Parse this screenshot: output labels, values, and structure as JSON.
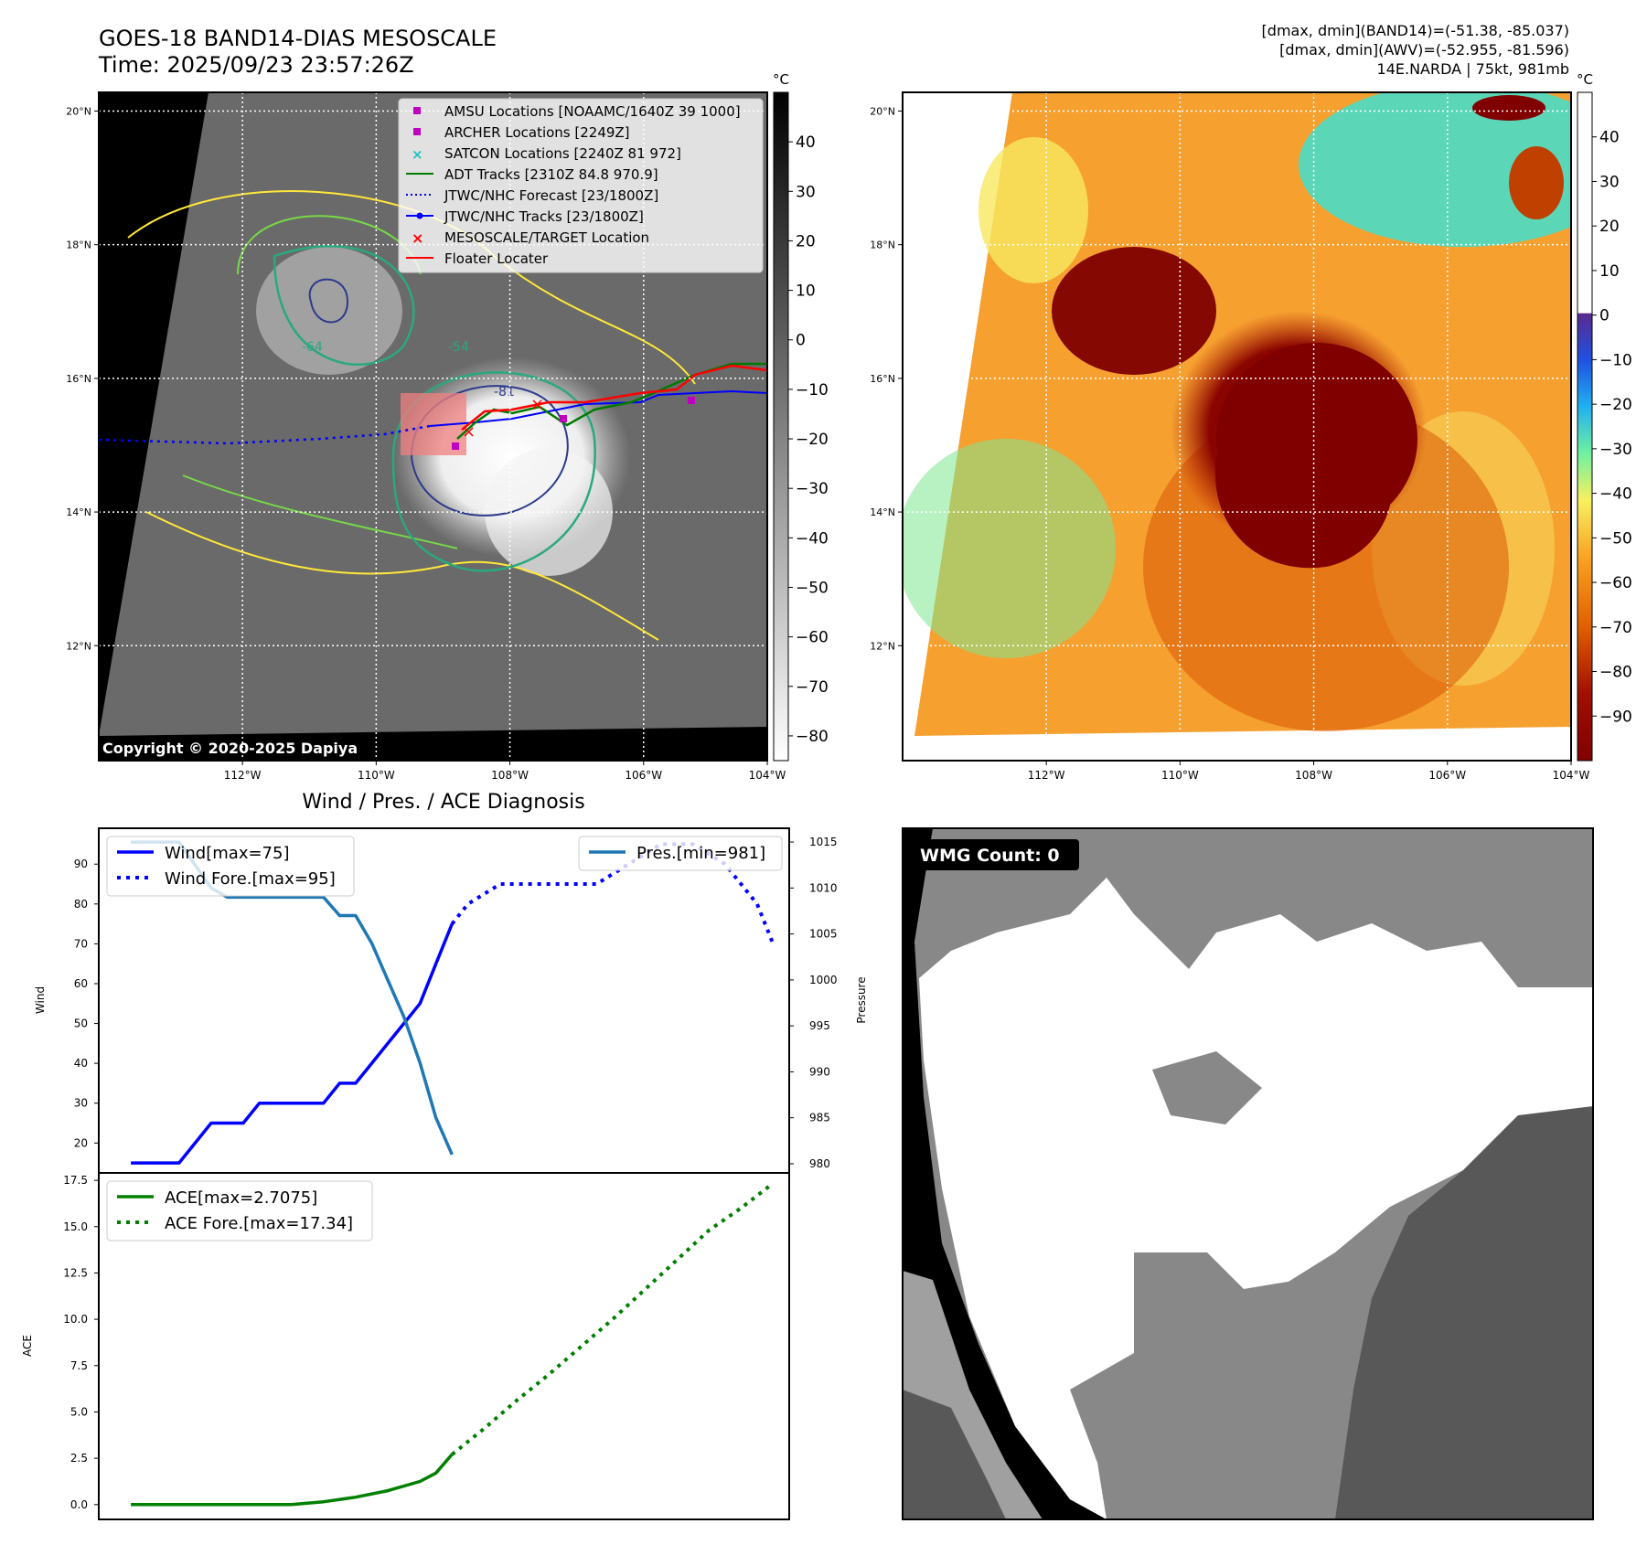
{
  "header": {
    "title_line1": "GOES-18 BAND14-DIAS MESOSCALE",
    "title_line2": "Time: 2025/09/23 23:57:26Z",
    "stats_line1": "[dmax, dmin](BAND14)=(-51.38, -85.037)",
    "stats_line2": "[dmax, dmin](AWV)=(-52.955, -81.596)",
    "stats_line3": "14E.NARDA | 75kt, 981mb"
  },
  "copyright": "Copyright © 2020-2025 Dapiya",
  "wmg_label": "WMG Count: 0",
  "chart_data": [
    {
      "type": "heatmap",
      "name": "ir-map-gray",
      "xticks": [
        "112°W",
        "110°W",
        "108°W",
        "106°W",
        "104°W"
      ],
      "yticks": [
        "20°N",
        "18°N",
        "16°N",
        "14°N",
        "12°N"
      ],
      "colorbar": {
        "unit": "°C",
        "ticks": [
          40,
          30,
          20,
          10,
          0,
          -10,
          -20,
          -30,
          -40,
          -50,
          -60,
          -70,
          -80
        ],
        "range": [
          -85,
          50
        ],
        "palette": "gray"
      },
      "contour_labels": [
        "-64",
        "-54",
        "-81"
      ],
      "legend": [
        {
          "label": "AMSU Locations [NOAAMC/1640Z 39 1000]",
          "marker": "square",
          "color": "#c000c0"
        },
        {
          "label": "ARCHER Locations [2249Z]",
          "marker": "square",
          "color": "#c000c0"
        },
        {
          "label": "SATCON Locations [2240Z 81 972]",
          "marker": "x",
          "color": "#20c0c0"
        },
        {
          "label": "ADT Tracks [2310Z 84.8 970.9]",
          "marker": "line",
          "color": "#007a00"
        },
        {
          "label": "JTWC/NHC Forecast [23/1800Z]",
          "marker": "dotted",
          "color": "#0000ff"
        },
        {
          "label": "JTWC/NHC Tracks [23/1800Z]",
          "marker": "line-dot",
          "color": "#0000ff"
        },
        {
          "label": "MESOSCALE/TARGET Location",
          "marker": "x",
          "color": "#ff0000"
        },
        {
          "label": "Floater Locater",
          "marker": "line",
          "color": "#ff0000"
        }
      ],
      "storm_center": {
        "lon": -108.5,
        "lat": 15.4
      }
    },
    {
      "type": "heatmap",
      "name": "ir-map-color",
      "xticks": [
        "112°W",
        "110°W",
        "108°W",
        "106°W",
        "104°W"
      ],
      "yticks": [
        "20°N",
        "18°N",
        "16°N",
        "14°N",
        "12°N"
      ],
      "colorbar": {
        "unit": "°C",
        "ticks": [
          40,
          30,
          20,
          10,
          0,
          -10,
          -20,
          -30,
          -40,
          -50,
          -60,
          -70,
          -80,
          -90
        ],
        "range": [
          -100,
          50
        ],
        "palette": "enhanced-ir"
      }
    },
    {
      "type": "line",
      "name": "wind-pressure",
      "title": "Wind / Pres. / ACE Diagnosis",
      "ylabel": "Wind",
      "y2label": "Pressure",
      "ylim": [
        12.5,
        99
      ],
      "y2lim": [
        979,
        1016.5
      ],
      "xlim": [
        -1,
        42
      ],
      "yticks": [
        20,
        30,
        40,
        50,
        60,
        70,
        80,
        90
      ],
      "y2ticks": [
        980,
        985,
        990,
        995,
        1000,
        1005,
        1010,
        1015
      ],
      "series": [
        {
          "name": "Wind[max=75]",
          "style": "solid",
          "color": "#0000ff",
          "axis": "left",
          "x": [
            1,
            4,
            6,
            8,
            9,
            11,
            13,
            14,
            15,
            16,
            17,
            18,
            19,
            20,
            21
          ],
          "values": [
            15,
            15,
            25,
            25,
            30,
            30,
            30,
            35,
            35,
            40,
            45,
            50,
            55,
            65,
            75
          ]
        },
        {
          "name": "Wind Fore.[max=95]",
          "style": "dotted",
          "color": "#0000ff",
          "axis": "left",
          "x": [
            21,
            22,
            24,
            26,
            28,
            30,
            32,
            34,
            36,
            38,
            39,
            40,
            41
          ],
          "values": [
            75,
            80,
            85,
            85,
            85,
            85,
            90,
            95,
            95,
            90,
            85,
            80,
            70
          ]
        },
        {
          "name": "Pres.[min=981]",
          "style": "solid",
          "color": "#1f77b4",
          "axis": "right",
          "x": [
            1,
            4,
            6,
            7,
            8,
            9,
            10,
            11,
            12,
            13,
            14,
            15,
            16,
            17,
            18,
            19,
            20,
            21
          ],
          "values": [
            1015,
            1015,
            1010,
            1009,
            1009,
            1009,
            1009,
            1009,
            1009,
            1009,
            1007,
            1007,
            1004,
            1000,
            996,
            991,
            985,
            981
          ]
        }
      ]
    },
    {
      "type": "line",
      "name": "ace",
      "ylabel": "ACE",
      "ylim": [
        -0.8,
        17.9
      ],
      "xlim": [
        -1,
        42
      ],
      "yticks": [
        0.0,
        2.5,
        5.0,
        7.5,
        10.0,
        12.5,
        15.0,
        17.5
      ],
      "series": [
        {
          "name": "ACE[max=2.7075]",
          "style": "solid",
          "color": "#008000",
          "x": [
            1,
            6,
            11,
            13,
            15,
            17,
            19,
            20,
            21
          ],
          "values": [
            0.0,
            0.0,
            0.0,
            0.15,
            0.4,
            0.75,
            1.25,
            1.7,
            2.7075
          ]
        },
        {
          "name": "ACE Fore.[max=17.34]",
          "style": "dotted",
          "color": "#008000",
          "x": [
            21,
            23,
            25,
            27,
            29,
            31,
            33,
            35,
            37,
            39,
            41
          ],
          "values": [
            2.7075,
            4.1,
            5.6,
            7.0,
            8.5,
            10.0,
            11.6,
            13.2,
            14.8,
            16.0,
            17.34
          ]
        }
      ]
    },
    {
      "type": "heatmap",
      "name": "wmg-grid",
      "label": "WMG Count: 0",
      "palette": [
        "#000000",
        "#888888",
        "#a0a0a0",
        "#585858",
        "#ffffff"
      ]
    }
  ]
}
